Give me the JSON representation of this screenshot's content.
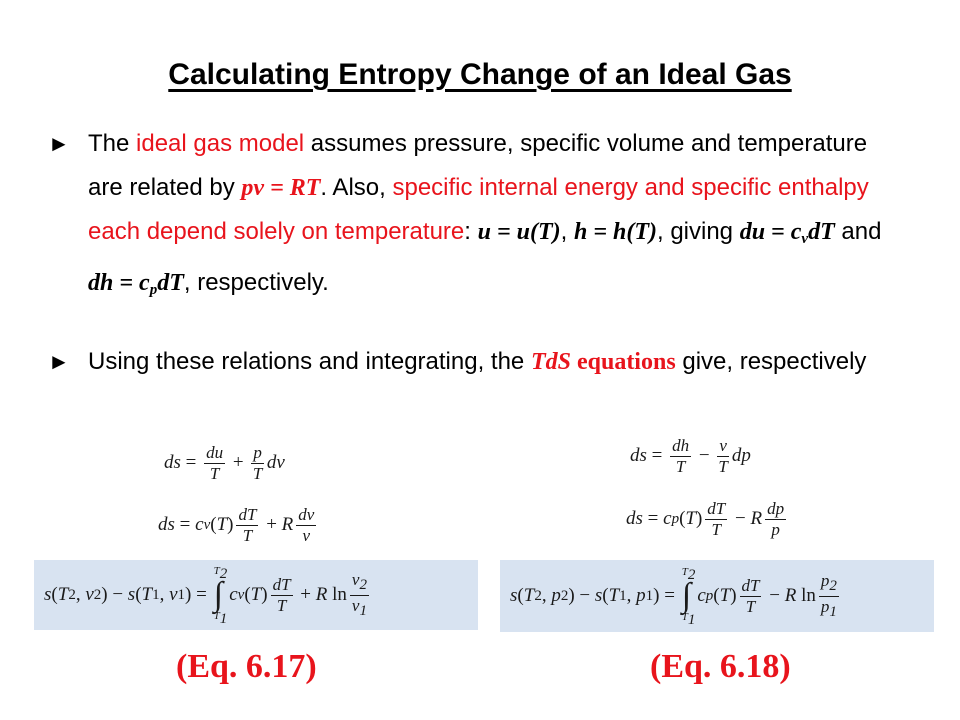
{
  "title": "Calculating Entropy Change of an Ideal Gas",
  "bullet_icon": "►",
  "bullet1": {
    "t1": "The ",
    "t2": "ideal gas model",
    "t3": " assumes pressure, specific volume and temperature are related by ",
    "eq_pv": "pv = RT",
    "t4": ".  Also, ",
    "t5": "specific internal energy and specific enthalpy each depend solely on temperature",
    "t6": ":  ",
    "eq_u": "u = u(T)",
    "t7": ", ",
    "eq_h": "h = h(T)",
    "t8": ", giving ",
    "eq_du": "du = c",
    "eq_du_sub": "v",
    "eq_du_end": "dT",
    "t9": " and ",
    "eq_dh": "dh = c",
    "eq_dh_sub": "p",
    "eq_dh_end": "dT",
    "t10": ", respectively."
  },
  "bullet2": {
    "t1": "Using these relations and integrating, the ",
    "tds": "TdS",
    "eqs": " equations",
    "t2": " give, respectively"
  },
  "eq_labels": {
    "left": "(Eq. 6.17)",
    "right": "(Eq. 6.18)"
  },
  "colors": {
    "accent_red": "#e8141c",
    "equation_bg": "#d8e3f1"
  }
}
